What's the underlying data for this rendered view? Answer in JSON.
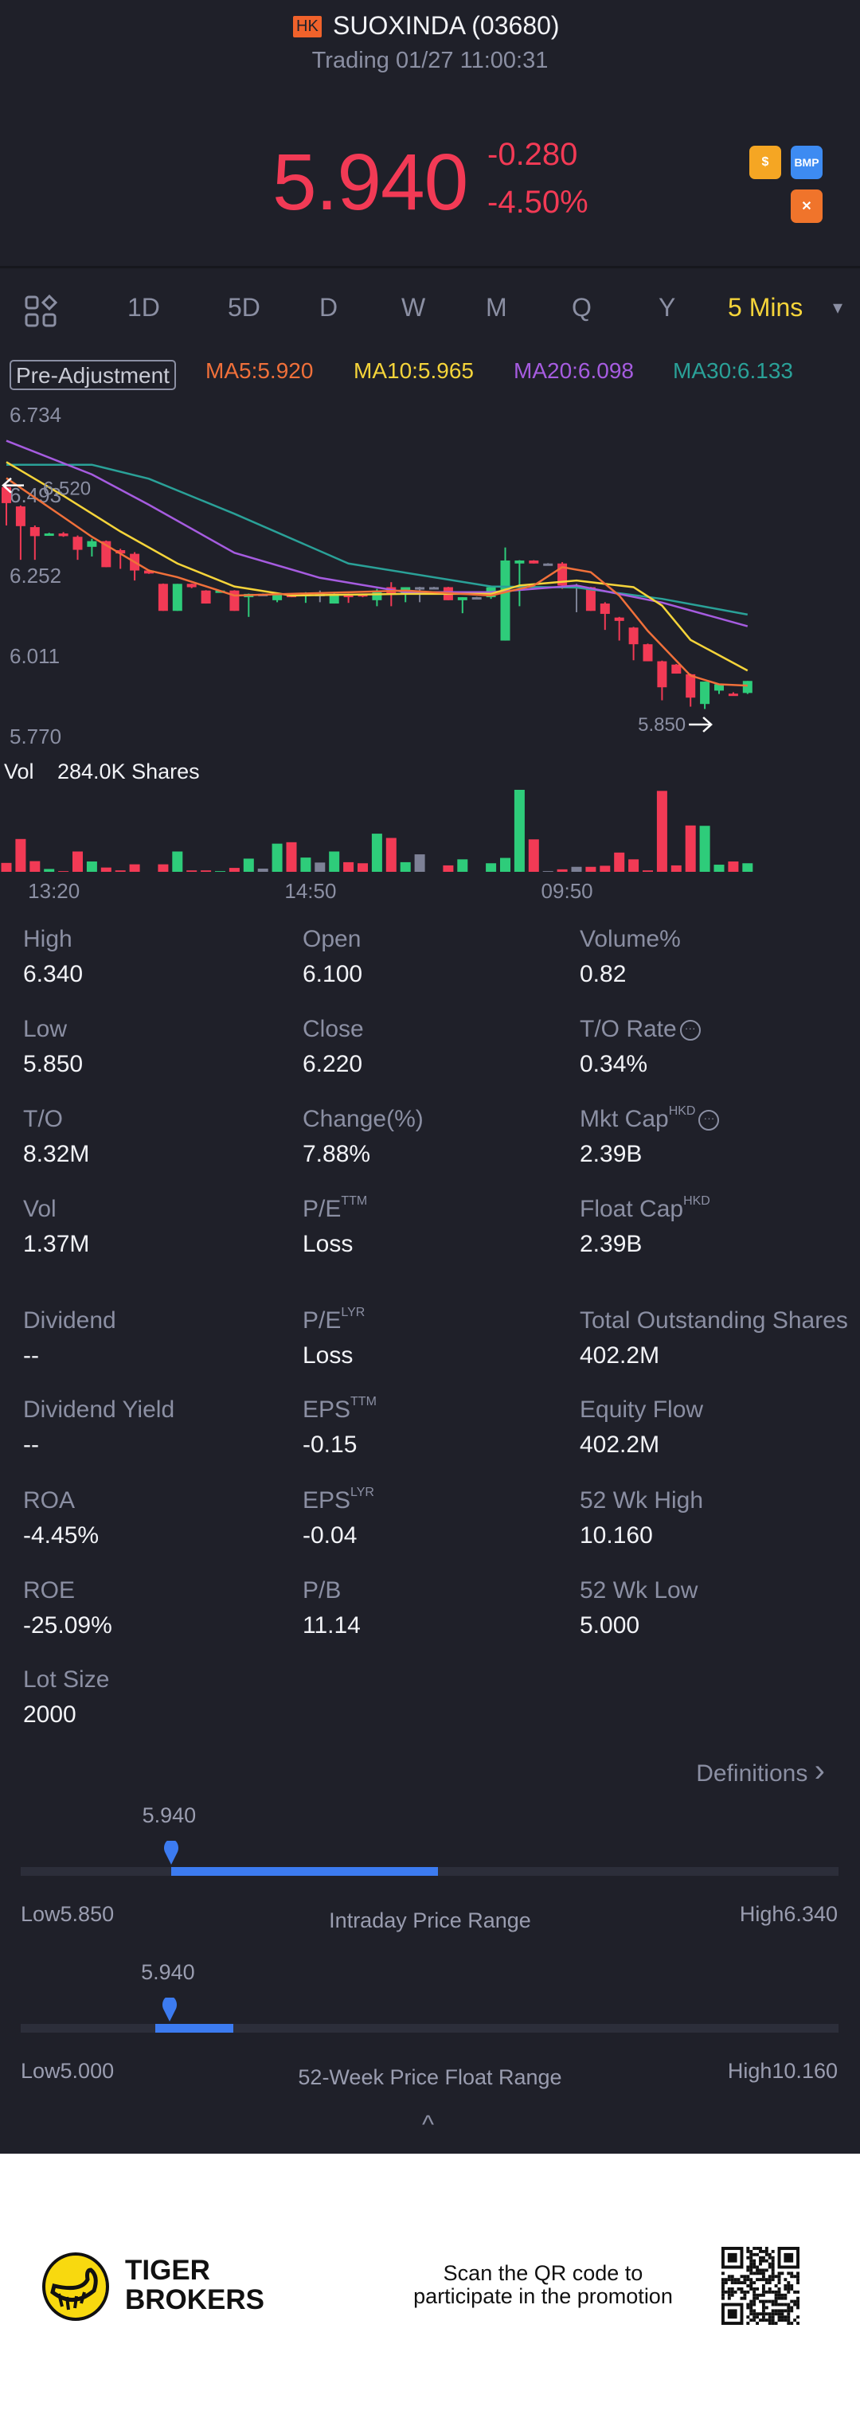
{
  "header": {
    "market_badge": "HK",
    "title": "SUOXINDA (03680)",
    "status": "Trading 01/27 11:00:31"
  },
  "quote": {
    "price": "5.940",
    "change": "-0.280",
    "change_pct": "-4.50%"
  },
  "badges": [
    {
      "icon": "dollar-icon",
      "label": "$",
      "color": "#f5a623"
    },
    {
      "icon": "bmp-icon",
      "label": "BMP",
      "color": "#3d8bf2"
    },
    {
      "icon": "margin-icon",
      "label": "✕",
      "color": "#f0742b"
    }
  ],
  "tabs": [
    {
      "label": "1D"
    },
    {
      "label": "5D"
    },
    {
      "label": "D"
    },
    {
      "label": "W"
    },
    {
      "label": "M"
    },
    {
      "label": "Q"
    },
    {
      "label": "Y"
    },
    {
      "label": "5 Mins"
    }
  ],
  "tabs_dropdown": "▾",
  "colors": {
    "up": "#2ecc7a",
    "down": "#f23a55",
    "flat": "#7d8196",
    "ma5": "#f0703a",
    "ma10": "#f5d43a",
    "ma20": "#a65ce0",
    "ma30": "#2aa198"
  },
  "chart_data": {
    "type": "candlestick",
    "adjustment": "Pre-Adjustment",
    "ma_legend": {
      "ma5": "MA5:5.920",
      "ma10": "MA10:5.965",
      "ma20": "MA20:6.098",
      "ma30": "MA30:6.133"
    },
    "y_ticks": [
      "6.734",
      "6.493",
      "6.252",
      "6.011",
      "5.770"
    ],
    "ylim": [
      5.77,
      6.734
    ],
    "x_ticks": [
      {
        "index": 3,
        "label": "13:20"
      },
      {
        "index": 21,
        "label": "14:50"
      },
      {
        "index": 39,
        "label": "09:50"
      }
    ],
    "max_marker": {
      "index": 0,
      "label": "6.520"
    },
    "min_marker": {
      "index": 49,
      "label": "5.850"
    },
    "volume_label": "Vol",
    "volume_value": "284.0K Shares",
    "candles_ohlcv": [
      [
        6.515,
        6.52,
        6.4,
        6.467,
        25
      ],
      [
        6.457,
        6.46,
        6.297,
        6.398,
        92
      ],
      [
        6.395,
        6.4,
        6.297,
        6.368,
        30
      ],
      [
        6.374,
        6.378,
        6.372,
        6.376,
        8
      ],
      [
        6.376,
        6.38,
        6.366,
        6.368,
        2
      ],
      [
        6.366,
        6.37,
        6.297,
        6.327,
        57
      ],
      [
        6.336,
        6.36,
        6.307,
        6.353,
        29
      ],
      [
        6.353,
        6.355,
        6.275,
        6.275,
        12
      ],
      [
        6.326,
        6.33,
        6.27,
        6.316,
        4
      ],
      [
        6.315,
        6.32,
        6.235,
        6.265,
        21
      ],
      [
        6.265,
        6.268,
        6.255,
        6.256,
        0
      ],
      [
        6.225,
        6.226,
        6.144,
        6.144,
        21
      ],
      [
        6.144,
        6.225,
        6.144,
        6.225,
        57
      ],
      [
        6.225,
        6.226,
        6.212,
        6.215,
        4
      ],
      [
        6.205,
        6.206,
        6.166,
        6.166,
        4
      ],
      [
        6.203,
        6.206,
        6.2,
        6.205,
        2
      ],
      [
        6.205,
        6.206,
        6.144,
        6.144,
        11
      ],
      [
        6.185,
        6.196,
        6.126,
        6.195,
        37
      ],
      [
        6.195,
        6.196,
        6.194,
        6.195,
        9
      ],
      [
        6.176,
        6.196,
        6.17,
        6.195,
        79
      ],
      [
        6.195,
        6.196,
        6.185,
        6.185,
        83
      ],
      [
        6.193,
        6.2,
        6.168,
        6.195,
        40
      ],
      [
        6.195,
        6.205,
        6.17,
        6.195,
        26
      ],
      [
        6.166,
        6.196,
        6.166,
        6.195,
        57
      ],
      [
        6.195,
        6.196,
        6.168,
        6.185,
        27
      ],
      [
        6.195,
        6.196,
        6.185,
        6.187,
        24
      ],
      [
        6.176,
        6.21,
        6.158,
        6.205,
        107
      ],
      [
        6.215,
        6.23,
        6.158,
        6.195,
        95
      ],
      [
        6.195,
        6.215,
        6.17,
        6.215,
        27
      ],
      [
        6.215,
        6.216,
        6.17,
        6.215,
        49
      ],
      [
        6.215,
        6.216,
        6.21,
        6.215,
        0
      ],
      [
        6.215,
        6.216,
        6.176,
        6.176,
        18
      ],
      [
        6.176,
        6.185,
        6.137,
        6.185,
        35
      ],
      [
        6.185,
        6.186,
        6.184,
        6.185,
        0
      ],
      [
        6.185,
        6.22,
        6.18,
        6.215,
        24
      ],
      [
        6.055,
        6.334,
        6.055,
        6.295,
        39
      ],
      [
        6.286,
        6.296,
        6.158,
        6.295,
        230
      ],
      [
        6.295,
        6.296,
        6.286,
        6.286,
        91
      ],
      [
        6.286,
        6.287,
        6.285,
        6.286,
        2
      ],
      [
        6.286,
        6.29,
        6.21,
        6.22,
        7
      ],
      [
        6.22,
        6.225,
        6.14,
        6.22,
        14
      ],
      [
        6.215,
        6.216,
        6.144,
        6.144,
        14
      ],
      [
        6.166,
        6.17,
        6.087,
        6.135,
        17
      ],
      [
        6.124,
        6.126,
        6.055,
        6.114,
        54
      ],
      [
        6.094,
        6.096,
        5.996,
        6.044,
        35
      ],
      [
        6.044,
        6.046,
        5.993,
        5.993,
        4
      ],
      [
        5.993,
        5.995,
        5.876,
        5.915,
        227
      ],
      [
        5.983,
        5.985,
        5.956,
        5.956,
        18
      ],
      [
        5.954,
        5.956,
        5.857,
        5.884,
        130
      ],
      [
        5.865,
        5.932,
        5.85,
        5.932,
        129
      ],
      [
        5.905,
        5.924,
        5.895,
        5.924,
        20
      ],
      [
        5.896,
        5.9,
        5.89,
        5.894,
        29
      ],
      [
        5.898,
        5.934,
        5.895,
        5.934,
        24
      ]
    ],
    "ma_lines": {
      "ma5": [
        [
          0,
          6.542
        ],
        [
          4,
          6.425
        ],
        [
          6,
          6.366
        ],
        [
          10,
          6.265
        ],
        [
          12,
          6.245
        ],
        [
          16,
          6.19
        ],
        [
          28,
          6.205
        ],
        [
          34,
          6.19
        ],
        [
          37,
          6.22
        ],
        [
          39,
          6.275
        ],
        [
          41,
          6.26
        ],
        [
          43,
          6.19
        ],
        [
          45,
          6.084
        ],
        [
          48,
          5.95
        ],
        [
          50,
          5.924
        ],
        [
          52,
          5.92
        ]
      ],
      "ma10": [
        [
          0,
          6.59
        ],
        [
          4,
          6.489
        ],
        [
          8,
          6.382
        ],
        [
          12,
          6.286
        ],
        [
          16,
          6.217
        ],
        [
          20,
          6.19
        ],
        [
          28,
          6.195
        ],
        [
          34,
          6.195
        ],
        [
          36,
          6.22
        ],
        [
          40,
          6.235
        ],
        [
          44,
          6.215
        ],
        [
          46,
          6.16
        ],
        [
          48,
          6.057
        ],
        [
          52,
          5.965
        ]
      ],
      "ma20": [
        [
          0,
          6.654
        ],
        [
          6,
          6.553
        ],
        [
          10,
          6.462
        ],
        [
          16,
          6.318
        ],
        [
          22,
          6.243
        ],
        [
          28,
          6.2
        ],
        [
          34,
          6.2
        ],
        [
          40,
          6.22
        ],
        [
          46,
          6.169
        ],
        [
          52,
          6.098
        ]
      ],
      "ma30": [
        [
          0,
          6.582
        ],
        [
          6,
          6.582
        ],
        [
          10,
          6.54
        ],
        [
          16,
          6.435
        ],
        [
          24,
          6.286
        ],
        [
          34,
          6.217
        ],
        [
          40,
          6.214
        ],
        [
          46,
          6.18
        ],
        [
          52,
          6.133
        ]
      ]
    }
  },
  "stats": [
    [
      {
        "label": "High",
        "value": "6.340"
      },
      {
        "label": "Open",
        "value": "6.100"
      },
      {
        "label": "Volume%",
        "value": "0.82"
      }
    ],
    [
      {
        "label": "Low",
        "value": "5.850"
      },
      {
        "label": "Close",
        "value": "6.220"
      },
      {
        "label": "T/O Rate",
        "value": "0.34%",
        "info": "···"
      }
    ],
    [
      {
        "label": "T/O",
        "value": "8.32M"
      },
      {
        "label": "Change(%)",
        "value": "7.88%"
      },
      {
        "label": "Mkt Cap",
        "sup": "HKD",
        "value": "2.39B",
        "info": "···"
      }
    ],
    [
      {
        "label": "Vol",
        "value": "1.37M"
      },
      {
        "label": "P/E",
        "sup": "TTM",
        "value": "Loss"
      },
      {
        "label": "Float Cap",
        "sup": "HKD",
        "value": "2.39B"
      }
    ],
    [
      {
        "label": "Dividend",
        "value": "--"
      },
      {
        "label": "P/E",
        "sup": "LYR",
        "value": "Loss"
      },
      {
        "label": "Total Outstanding Shares",
        "value": "402.2M"
      }
    ],
    [
      {
        "label": "Dividend Yield",
        "value": "--"
      },
      {
        "label": "EPS",
        "sup": "TTM",
        "value": "-0.15"
      },
      {
        "label": "Equity Flow",
        "value": "402.2M"
      }
    ],
    [
      {
        "label": "ROA",
        "value": "-4.45%"
      },
      {
        "label": "EPS",
        "sup": "LYR",
        "value": "-0.04"
      },
      {
        "label": "52 Wk High",
        "value": "10.160"
      }
    ],
    [
      {
        "label": "ROE",
        "value": "-25.09%"
      },
      {
        "label": "P/B",
        "value": "11.14"
      },
      {
        "label": "52 Wk Low",
        "value": "5.000"
      }
    ],
    [
      {
        "label": "Lot Size",
        "value": "2000"
      }
    ]
  ],
  "definitions": {
    "label": "Definitions",
    "chevron": "›"
  },
  "ranges": [
    {
      "title": "Intraday Price Range",
      "current": "5.940",
      "low": "Low5.850",
      "high": "High6.340",
      "min": 5.85,
      "max": 6.34,
      "cur": 5.94,
      "fill_from": 5.94,
      "fill_to": 6.1
    },
    {
      "title": "52-Week Price Float Range",
      "current": "5.940",
      "low": "Low5.000",
      "high": "High10.160",
      "min": 5.0,
      "max": 10.16,
      "cur": 5.94,
      "fill_from": 5.85,
      "fill_to": 6.34
    }
  ],
  "collapse_icon": "^",
  "footer": {
    "brand_line1": "TIGER",
    "brand_line2": "BROKERS",
    "promo_line1": "Scan the QR code to",
    "promo_line2": "participate in the promotion"
  }
}
